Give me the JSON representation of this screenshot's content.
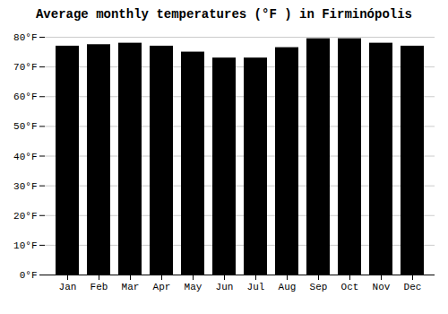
{
  "chart_data": {
    "type": "bar",
    "title": "Average monthly temperatures (°F ) in Firminópolis",
    "categories": [
      "Jan",
      "Feb",
      "Mar",
      "Apr",
      "May",
      "Jun",
      "Jul",
      "Aug",
      "Sep",
      "Oct",
      "Nov",
      "Dec"
    ],
    "values": [
      77,
      77.5,
      78,
      77,
      75,
      73,
      73,
      76.5,
      79.5,
      79.5,
      78,
      77
    ],
    "ylim": [
      0,
      80
    ],
    "yticks": [
      {
        "value": 0,
        "label": "0°F"
      },
      {
        "value": 10,
        "label": "10°F"
      },
      {
        "value": 20,
        "label": "20°F"
      },
      {
        "value": 30,
        "label": "30°F"
      },
      {
        "value": 40,
        "label": "40°F"
      },
      {
        "value": 50,
        "label": "50°F"
      },
      {
        "value": 60,
        "label": "60°F"
      },
      {
        "value": 70,
        "label": "70°F"
      },
      {
        "value": 80,
        "label": "80°F"
      }
    ],
    "grid": true
  }
}
